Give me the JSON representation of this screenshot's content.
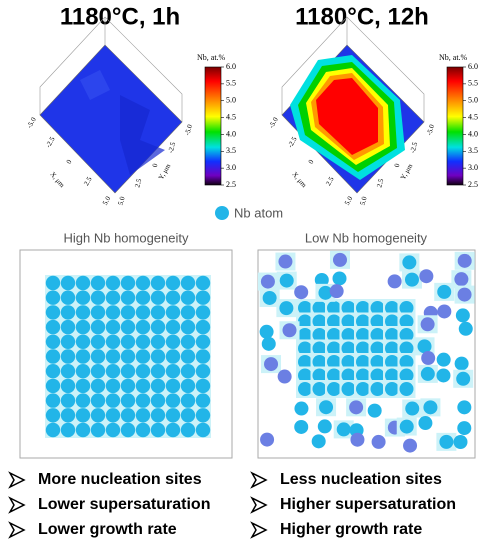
{
  "legend": "Nb atom",
  "panels": [
    {
      "title": "1180°C, 1h",
      "colorbar_label": "Nb, at.%",
      "colorbar_ticks": [
        "6.0",
        "5.5",
        "5.0",
        "4.5",
        "4.0",
        "3.5",
        "3.0",
        "2.5"
      ],
      "x_axis_label": "X, μm",
      "y_axis_label": "Y, μm",
      "axis_ticks": [
        "-5.0",
        "-2.5",
        "0",
        "2.5",
        "5.0"
      ],
      "caption": "High Nb homogeneity",
      "bullets": [
        "More nucleation sites",
        "Lower supersaturation",
        "Lower growth rate"
      ]
    },
    {
      "title": "1180°C, 12h",
      "colorbar_label": "Nb, at.%",
      "colorbar_ticks": [
        "6.0",
        "5.5",
        "5.0",
        "4.5",
        "4.0",
        "3.5",
        "3.0",
        "2.5"
      ],
      "x_axis_label": "X, μm",
      "y_axis_label": "Y, μm",
      "axis_ticks": [
        "-5.0",
        "-2.5",
        "0",
        "2.5",
        "5.0"
      ],
      "caption": "Low Nb homogeneity",
      "bullets": [
        "Less nucleation sites",
        "Higher supersaturation",
        "Higher growth rate"
      ]
    }
  ]
}
